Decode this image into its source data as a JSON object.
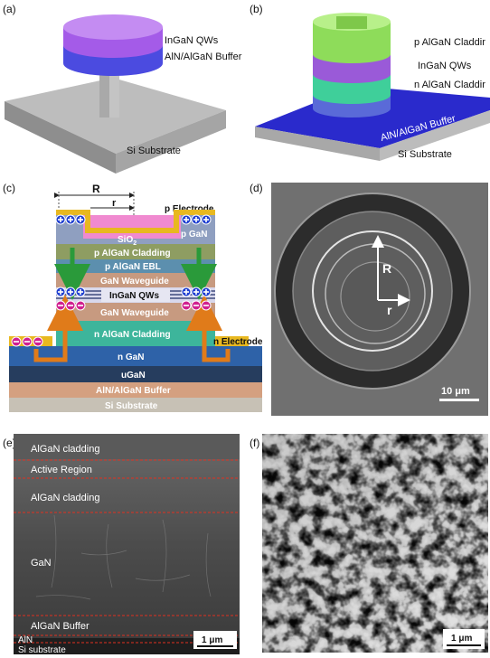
{
  "panel_a": {
    "label": "(a)",
    "top_layer": "InGaN QWs",
    "buffer": "AlN/AlGaN Buffer",
    "substrate": "Si Substrate"
  },
  "panel_b": {
    "label": "(b)",
    "p_cladding": "p AlGaN Claddir",
    "qws": "InGaN QWs",
    "n_cladding": "n AlGaN Claddir",
    "buffer": "AlN/AlGaN Buffer",
    "substrate": "Si Substrate"
  },
  "panel_c": {
    "label": "(c)",
    "outer_radius": "R",
    "inner_radius": "r",
    "p_electrode": "p Electrode",
    "p_gan": "p GaN",
    "sio2": {
      "text": "SiO",
      "subscript": "2"
    },
    "layers": [
      "p AlGaN Cladding",
      "p AlGaN EBL",
      "GaN Waveguide",
      "InGaN QWs",
      "GaN Waveguide",
      "n AlGaN Cladding",
      "n GaN",
      "uGaN",
      "AlN/AlGaN Buffer",
      "Si Substrate"
    ],
    "n_electrode": "n Electrode"
  },
  "panel_d": {
    "label": "(d)",
    "outer_radius": "R",
    "inner_radius": "r",
    "scale_bar": "10 μm"
  },
  "panel_e": {
    "label": "(e)",
    "regions": [
      "AlGaN cladding",
      "Active Region",
      "AlGaN cladding",
      "GaN",
      "AlGaN Buffer",
      "AlN",
      "Si substrate"
    ],
    "scale_bar": "1 μm"
  },
  "panel_f": {
    "label": "(f)",
    "scale_bar": "1 μm"
  }
}
